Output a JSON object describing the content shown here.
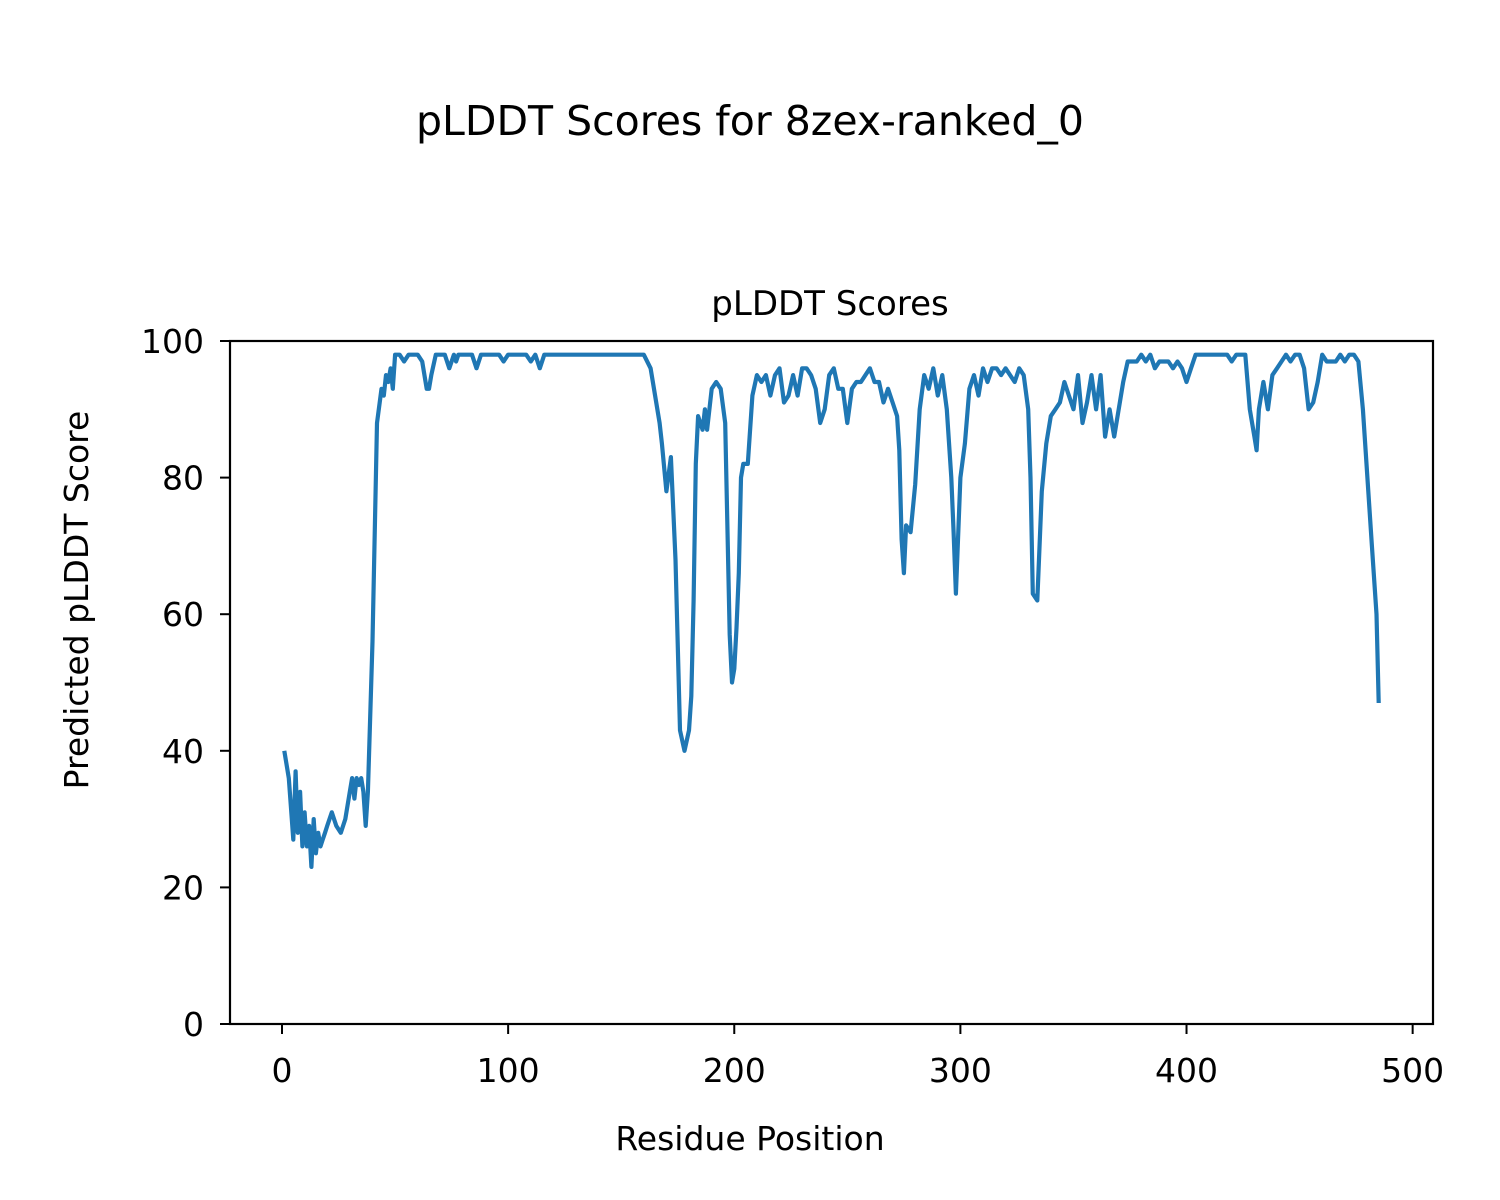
{
  "chart_data": {
    "type": "line",
    "suptitle": "pLDDT Scores for 8zex-ranked_0",
    "title": "pLDDT Scores",
    "xlabel": "Residue Position",
    "ylabel": "Predicted pLDDT Score",
    "xlim": [
      -23,
      509
    ],
    "ylim": [
      0,
      100
    ],
    "xticks": [
      "0",
      "100",
      "200",
      "300",
      "400",
      "500"
    ],
    "yticks": [
      "0",
      "20",
      "40",
      "60",
      "80",
      "100"
    ],
    "grid": false,
    "line_color": "#1f77b4",
    "series": [
      {
        "x": [
          1,
          3,
          5,
          6,
          7,
          8,
          9,
          10,
          11,
          12,
          13,
          14,
          15,
          16,
          17,
          18,
          19,
          20,
          22,
          24,
          26,
          28,
          30,
          31,
          32,
          33,
          34,
          35,
          36,
          37,
          38,
          40,
          42,
          44,
          45,
          46,
          47,
          48,
          49,
          50,
          52,
          54,
          56,
          58,
          60,
          62,
          64,
          65,
          66,
          68,
          70,
          72,
          74,
          76,
          77,
          78,
          80,
          82,
          84,
          86,
          88,
          90,
          92,
          94,
          96,
          98,
          100,
          104,
          108,
          110,
          112,
          114,
          116,
          120,
          125,
          130,
          135,
          140,
          145,
          150,
          155,
          160,
          163,
          165,
          167,
          168,
          170,
          172,
          174,
          176,
          178,
          180,
          181,
          182,
          183,
          184,
          186,
          187,
          188,
          190,
          192,
          194,
          196,
          198,
          199,
          200,
          201,
          202,
          203,
          204,
          206,
          208,
          210,
          212,
          214,
          216,
          218,
          220,
          222,
          224,
          226,
          228,
          230,
          232,
          234,
          236,
          238,
          240,
          242,
          244,
          246,
          248,
          250,
          252,
          254,
          256,
          258,
          260,
          262,
          264,
          266,
          268,
          270,
          272,
          273,
          274,
          275,
          276,
          278,
          280,
          282,
          284,
          286,
          288,
          290,
          292,
          294,
          296,
          297,
          298,
          300,
          302,
          304,
          306,
          308,
          310,
          312,
          314,
          316,
          318,
          320,
          322,
          324,
          326,
          328,
          330,
          331,
          332,
          334,
          336,
          338,
          340,
          342,
          344,
          346,
          348,
          350,
          352,
          354,
          356,
          358,
          360,
          362,
          364,
          366,
          368,
          370,
          372,
          374,
          376,
          378,
          380,
          382,
          384,
          386,
          388,
          390,
          392,
          394,
          396,
          398,
          400,
          402,
          404,
          406,
          408,
          410,
          412,
          414,
          416,
          418,
          420,
          422,
          424,
          426,
          428,
          430,
          431,
          432,
          434,
          436,
          438,
          440,
          442,
          444,
          446,
          448,
          450,
          452,
          454,
          456,
          458,
          460,
          462,
          464,
          466,
          468,
          470,
          472,
          474,
          476,
          478,
          480,
          482,
          484,
          485
        ],
        "y": [
          40,
          36,
          27,
          37,
          28,
          34,
          26,
          31,
          26,
          29,
          23,
          30,
          25,
          28,
          26,
          27,
          28,
          29,
          31,
          29,
          28,
          30,
          34,
          36,
          33,
          36,
          35,
          36,
          34,
          29,
          34,
          56,
          88,
          93,
          92,
          95,
          94,
          96,
          93,
          98,
          98,
          97,
          98,
          98,
          98,
          97,
          93,
          93,
          95,
          98,
          98,
          98,
          96,
          98,
          97,
          98,
          98,
          98,
          98,
          96,
          98,
          98,
          98,
          98,
          98,
          97,
          98,
          98,
          98,
          97,
          98,
          96,
          98,
          98,
          98,
          98,
          98,
          98,
          98,
          98,
          98,
          98,
          96,
          92,
          88,
          85,
          78,
          83,
          68,
          43,
          40,
          43,
          48,
          62,
          82,
          89,
          87,
          90,
          87,
          93,
          94,
          93,
          88,
          57,
          50,
          52,
          58,
          66,
          80,
          82,
          82,
          92,
          95,
          94,
          95,
          92,
          95,
          96,
          91,
          92,
          95,
          92,
          96,
          96,
          95,
          93,
          88,
          90,
          95,
          96,
          93,
          93,
          88,
          93,
          94,
          94,
          95,
          96,
          94,
          94,
          91,
          93,
          91,
          89,
          84,
          71,
          66,
          73,
          72,
          79,
          90,
          95,
          93,
          96,
          92,
          95,
          90,
          80,
          72,
          63,
          80,
          85,
          93,
          95,
          92,
          96,
          94,
          96,
          96,
          95,
          96,
          95,
          94,
          96,
          95,
          90,
          80,
          63,
          62,
          78,
          85,
          89,
          90,
          91,
          94,
          92,
          90,
          95,
          88,
          91,
          95,
          90,
          95,
          86,
          90,
          86,
          90,
          94,
          97,
          97,
          97,
          98,
          97,
          98,
          96,
          97,
          97,
          97,
          96,
          97,
          96,
          94,
          96,
          98,
          98,
          98,
          98,
          98,
          98,
          98,
          98,
          97,
          98,
          98,
          98,
          90,
          86,
          84,
          90,
          94,
          90,
          95,
          96,
          97,
          98,
          97,
          98,
          98,
          96,
          90,
          91,
          94,
          98,
          97,
          97,
          97,
          98,
          97,
          98,
          98,
          97,
          90,
          80,
          70,
          60,
          47
        ]
      }
    ]
  }
}
